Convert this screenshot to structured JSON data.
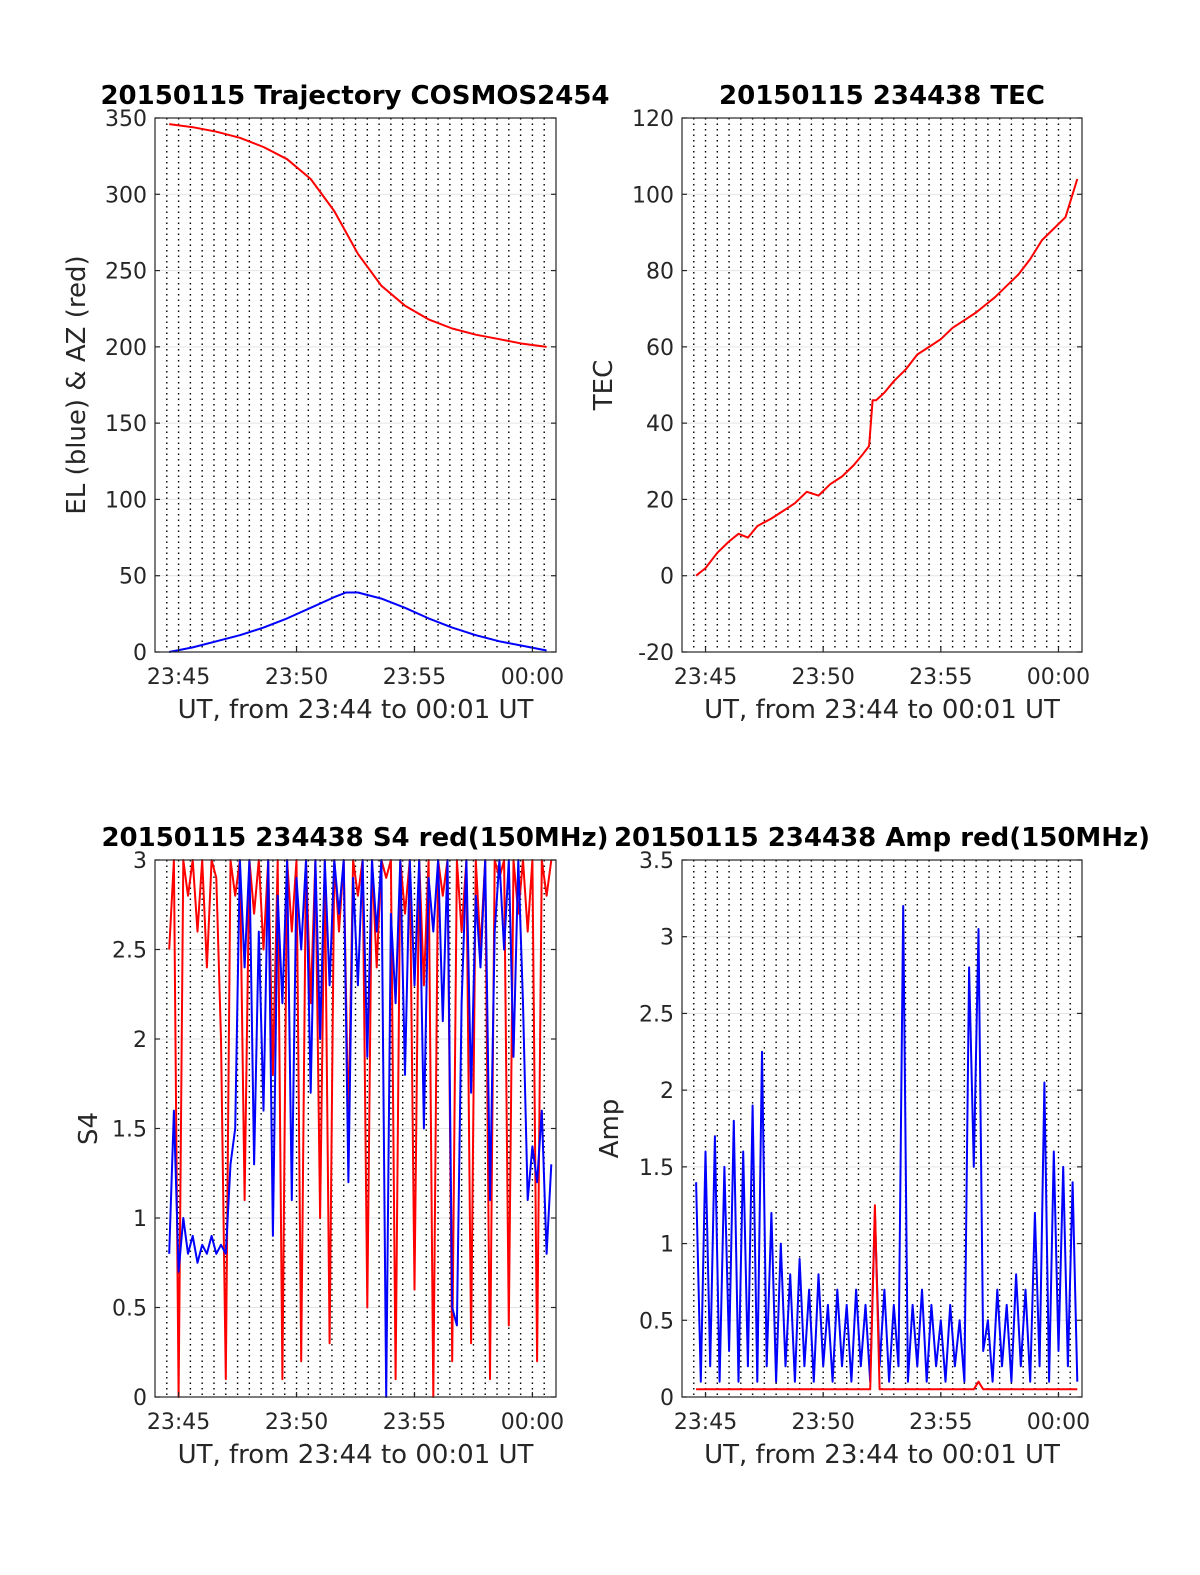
{
  "chart_data": [
    {
      "id": "trajectory",
      "type": "line",
      "title": "20150115 Trajectory COSMOS2454",
      "xlabel": "UT, from 23:44 to 00:01 UT",
      "ylabel": "EL (blue) & AZ (red)",
      "xlim_minutes": [
        0,
        17
      ],
      "xticks_minutes": [
        1,
        6,
        11,
        16
      ],
      "xtick_labels": [
        "23:45",
        "23:50",
        "23:55",
        "00:00"
      ],
      "ylim": [
        0,
        350
      ],
      "yticks": [
        0,
        50,
        100,
        150,
        200,
        250,
        300,
        350
      ],
      "ytick_labels": [
        "0",
        "50",
        "100",
        "150",
        "200",
        "250",
        "300",
        "350"
      ],
      "grid": true,
      "x": [
        0.6,
        1.6,
        2.6,
        3.6,
        4.6,
        5.6,
        6.6,
        7.6,
        8.1,
        8.6,
        9.6,
        10.6,
        11.6,
        12.6,
        13.6,
        14.6,
        15.6,
        16.6
      ],
      "series": [
        {
          "color": "#ff0000",
          "values": [
            346,
            344,
            341,
            337,
            331,
            323,
            310,
            289,
            275,
            261,
            240,
            227,
            218,
            212,
            208,
            205,
            202,
            200
          ]
        },
        {
          "color": "#0000ff",
          "values": [
            0,
            3,
            7,
            11,
            16,
            22,
            29,
            36,
            39,
            39,
            35,
            29,
            22,
            16,
            11,
            7,
            4,
            1
          ]
        }
      ]
    },
    {
      "id": "tec",
      "type": "line",
      "title": "20150115 234438 TEC",
      "xlabel": "UT, from 23:44 to 00:01 UT",
      "ylabel": "TEC",
      "xlim_minutes": [
        0,
        17
      ],
      "xticks_minutes": [
        1,
        6,
        11,
        16
      ],
      "xtick_labels": [
        "23:45",
        "23:50",
        "23:55",
        "00:00"
      ],
      "ylim": [
        -20,
        120
      ],
      "yticks": [
        -20,
        0,
        20,
        40,
        60,
        80,
        100,
        120
      ],
      "ytick_labels": [
        "-20",
        "0",
        "20",
        "40",
        "60",
        "80",
        "100",
        "120"
      ],
      "grid": true,
      "x": [
        0.6,
        1.0,
        1.5,
        2.0,
        2.4,
        2.8,
        3.2,
        3.8,
        4.3,
        4.8,
        5.3,
        5.8,
        6.3,
        6.8,
        7.3,
        7.7,
        7.95,
        8.1,
        8.25,
        8.6,
        9.0,
        9.5,
        10.0,
        10.5,
        11.0,
        11.5,
        12.0,
        12.5,
        12.9,
        13.3,
        13.8,
        14.3,
        14.8,
        15.3,
        15.8,
        16.3,
        16.8
      ],
      "series": [
        {
          "color": "#ff0000",
          "values": [
            0,
            2,
            6,
            9,
            11,
            10,
            13,
            15,
            17,
            19,
            22,
            21,
            24,
            26,
            29,
            32,
            34,
            46,
            46,
            48,
            51,
            54,
            58,
            60,
            62,
            65,
            67,
            69,
            71,
            73,
            76,
            79,
            83,
            88,
            91,
            94,
            104
          ]
        }
      ]
    },
    {
      "id": "s4",
      "type": "line",
      "title": "20150115 234438 S4 red(150MHz)",
      "xlabel": "UT, from 23:44 to 00:01 UT",
      "ylabel": "S4",
      "xlim_minutes": [
        0,
        17
      ],
      "xticks_minutes": [
        1,
        6,
        11,
        16
      ],
      "xtick_labels": [
        "23:45",
        "23:50",
        "23:55",
        "00:00"
      ],
      "ylim": [
        0,
        3
      ],
      "yticks": [
        0,
        0.5,
        1,
        1.5,
        2,
        2.5,
        3
      ],
      "ytick_labels": [
        "0",
        "0.5",
        "1",
        "1.5",
        "2",
        "2.5",
        "3"
      ],
      "grid": true,
      "x": [
        0.6,
        0.8,
        1.0,
        1.2,
        1.4,
        1.6,
        1.8,
        2.0,
        2.2,
        2.4,
        2.6,
        2.8,
        3.0,
        3.2,
        3.4,
        3.6,
        3.8,
        4.0,
        4.2,
        4.4,
        4.6,
        4.8,
        5.0,
        5.2,
        5.4,
        5.6,
        5.8,
        6.0,
        6.2,
        6.4,
        6.6,
        6.8,
        7.0,
        7.2,
        7.4,
        7.6,
        7.8,
        8.0,
        8.2,
        8.4,
        8.6,
        8.8,
        9.0,
        9.2,
        9.4,
        9.6,
        9.8,
        10.0,
        10.2,
        10.4,
        10.6,
        10.8,
        11.0,
        11.2,
        11.4,
        11.6,
        11.8,
        12.0,
        12.2,
        12.4,
        12.6,
        12.8,
        13.0,
        13.2,
        13.4,
        13.6,
        13.8,
        14.0,
        14.2,
        14.4,
        14.6,
        14.8,
        15.0,
        15.2,
        15.4,
        15.6,
        15.8,
        16.0,
        16.2,
        16.4,
        16.6,
        16.8
      ],
      "series": [
        {
          "color": "#ff0000",
          "values": [
            2.5,
            3,
            0,
            3,
            2.8,
            3,
            2.6,
            3,
            2.4,
            3,
            2.9,
            2.0,
            0.1,
            3,
            2.8,
            3,
            1.1,
            3,
            2.7,
            3,
            2.5,
            3,
            1.8,
            3,
            0.1,
            3,
            2.6,
            3,
            0.2,
            3,
            2.2,
            3,
            1.0,
            3,
            0.3,
            3,
            2.6,
            3,
            1.5,
            3,
            2.8,
            3,
            0.5,
            3,
            2.4,
            3,
            2.9,
            3,
            0.1,
            3,
            2.7,
            3,
            0.6,
            3,
            2.3,
            3,
            0.0,
            3,
            2.8,
            3,
            0.2,
            3,
            2.6,
            3,
            0.3,
            3,
            2.5,
            3,
            0.1,
            3,
            2.9,
            3,
            0.4,
            3,
            2.7,
            3,
            2.6,
            3,
            0.2,
            3,
            2.8,
            3
          ]
        },
        {
          "color": "#0000ff",
          "values": [
            0.8,
            1.6,
            0.7,
            1.0,
            0.8,
            0.9,
            0.75,
            0.85,
            0.8,
            0.9,
            0.8,
            0.85,
            0.8,
            1.3,
            1.5,
            3,
            2.4,
            3,
            1.3,
            2.6,
            1.6,
            3,
            0.9,
            2.8,
            2.2,
            3,
            1.1,
            2.9,
            2.5,
            3,
            1.7,
            3,
            2.0,
            3,
            2.3,
            3,
            2.7,
            3,
            1.2,
            2.9,
            2.3,
            3,
            1.9,
            3,
            2.6,
            3,
            0.0,
            2.7,
            2.2,
            3,
            1.8,
            3,
            2.3,
            3,
            1.5,
            2.9,
            2.6,
            3,
            2.1,
            3,
            0.5,
            0.4,
            2.2,
            3,
            1.7,
            2.8,
            2.4,
            3,
            1.1,
            2.6,
            3,
            2.5,
            3,
            1.9,
            3,
            2.2,
            1.1,
            1.4,
            1.2,
            1.6,
            0.8,
            1.3
          ]
        }
      ]
    },
    {
      "id": "amp",
      "type": "line",
      "title": "20150115 234438 Amp red(150MHz)",
      "xlabel": "UT, from 23:44 to 00:01 UT",
      "ylabel": "Amp",
      "xlim_minutes": [
        0,
        17
      ],
      "xticks_minutes": [
        1,
        6,
        11,
        16
      ],
      "xtick_labels": [
        "23:45",
        "23:50",
        "23:55",
        "00:00"
      ],
      "ylim": [
        0,
        3.5
      ],
      "yticks": [
        0,
        0.5,
        1,
        1.5,
        2,
        2.5,
        3,
        3.5
      ],
      "ytick_labels": [
        "0",
        "0.5",
        "1",
        "1.5",
        "2",
        "2.5",
        "3",
        "3.5"
      ],
      "grid": true,
      "x": [
        0.6,
        0.8,
        1.0,
        1.2,
        1.4,
        1.6,
        1.8,
        2.0,
        2.2,
        2.4,
        2.6,
        2.8,
        3.0,
        3.2,
        3.4,
        3.6,
        3.8,
        4.0,
        4.2,
        4.4,
        4.6,
        4.8,
        5.0,
        5.2,
        5.4,
        5.6,
        5.8,
        6.0,
        6.2,
        6.4,
        6.6,
        6.8,
        7.0,
        7.2,
        7.4,
        7.6,
        7.8,
        8.0,
        8.2,
        8.4,
        8.6,
        8.8,
        9.0,
        9.2,
        9.4,
        9.6,
        9.8,
        10.0,
        10.2,
        10.4,
        10.6,
        10.8,
        11.0,
        11.2,
        11.4,
        11.6,
        11.8,
        12.0,
        12.2,
        12.4,
        12.6,
        12.8,
        13.0,
        13.2,
        13.4,
        13.6,
        13.8,
        14.0,
        14.2,
        14.4,
        14.6,
        14.8,
        15.0,
        15.2,
        15.4,
        15.6,
        15.8,
        16.0,
        16.2,
        16.4,
        16.6,
        16.8
      ],
      "series": [
        {
          "color": "#0000ff",
          "values": [
            1.4,
            0.1,
            1.6,
            0.2,
            1.7,
            0.1,
            1.5,
            0.3,
            1.8,
            0.1,
            1.6,
            0.2,
            1.9,
            0.1,
            2.25,
            0.2,
            1.2,
            0.1,
            1.0,
            0.2,
            0.8,
            0.1,
            0.9,
            0.2,
            0.7,
            0.1,
            0.8,
            0.2,
            0.6,
            0.1,
            0.7,
            0.2,
            0.6,
            0.1,
            0.7,
            0.2,
            0.6,
            0.1,
            1.2,
            0.2,
            0.7,
            0.1,
            0.6,
            0.2,
            3.2,
            0.1,
            0.6,
            0.2,
            0.7,
            0.1,
            0.6,
            0.2,
            0.5,
            0.1,
            0.6,
            0.2,
            0.5,
            0.1,
            2.8,
            1.5,
            3.05,
            0.3,
            0.5,
            0.1,
            0.7,
            0.2,
            0.6,
            0.1,
            0.8,
            0.2,
            0.7,
            0.1,
            1.2,
            0.2,
            2.05,
            0.1,
            1.6,
            0.3,
            1.5,
            0.2,
            1.4,
            0.1
          ]
        },
        {
          "color": "#ff0000",
          "values": [
            0.05,
            0.05,
            0.05,
            0.05,
            0.05,
            0.05,
            0.05,
            0.05,
            0.05,
            0.05,
            0.05,
            0.05,
            0.05,
            0.05,
            0.05,
            0.05,
            0.05,
            0.05,
            0.05,
            0.05,
            0.05,
            0.05,
            0.05,
            0.05,
            0.05,
            0.05,
            0.05,
            0.05,
            0.05,
            0.05,
            0.05,
            0.05,
            0.05,
            0.05,
            0.05,
            0.05,
            0.05,
            0.05,
            1.25,
            0.05,
            0.05,
            0.05,
            0.05,
            0.05,
            0.05,
            0.05,
            0.05,
            0.05,
            0.05,
            0.05,
            0.05,
            0.05,
            0.05,
            0.05,
            0.05,
            0.05,
            0.05,
            0.05,
            0.05,
            0.05,
            0.1,
            0.05,
            0.05,
            0.05,
            0.05,
            0.05,
            0.05,
            0.05,
            0.05,
            0.05,
            0.05,
            0.05,
            0.05,
            0.05,
            0.05,
            0.05,
            0.05,
            0.05,
            0.05,
            0.05,
            0.05,
            0.05
          ]
        }
      ]
    }
  ]
}
